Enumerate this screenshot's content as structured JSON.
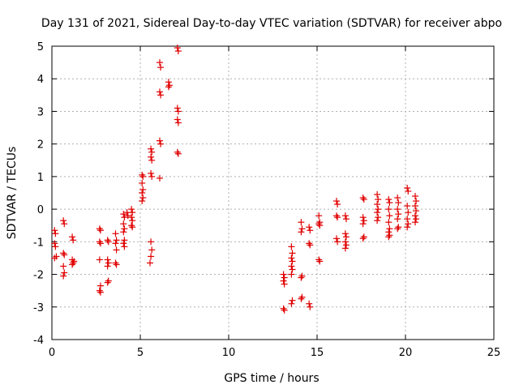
{
  "chart_data": {
    "type": "scatter",
    "title": "Day 131 of 2021, Sidereal Day-to-day VTEC variation (SDTVAR) for receiver abpo",
    "xlabel": "GPS time / hours",
    "ylabel": "SDTVAR / TECUs",
    "xlim": [
      0,
      25
    ],
    "ylim": [
      -4,
      5
    ],
    "xticks": [
      0,
      5,
      10,
      15,
      20,
      25
    ],
    "yticks": [
      -4,
      -3,
      -2,
      -1,
      0,
      1,
      2,
      3,
      4,
      5
    ],
    "grid": true,
    "marker": "+",
    "color": "#e00000",
    "series": [
      {
        "name": "SDTVAR",
        "points": [
          [
            0.15,
            -0.65
          ],
          [
            0.2,
            -0.75
          ],
          [
            0.15,
            -1.05
          ],
          [
            0.2,
            -1.15
          ],
          [
            0.25,
            -1.45
          ],
          [
            0.15,
            -1.5
          ],
          [
            0.65,
            -0.35
          ],
          [
            0.7,
            -0.45
          ],
          [
            0.65,
            -1.35
          ],
          [
            0.7,
            -1.4
          ],
          [
            0.65,
            -1.75
          ],
          [
            0.7,
            -1.95
          ],
          [
            0.65,
            -2.05
          ],
          [
            1.15,
            -0.85
          ],
          [
            1.2,
            -0.95
          ],
          [
            1.15,
            -1.55
          ],
          [
            1.2,
            -1.65
          ],
          [
            1.15,
            -1.7
          ],
          [
            1.25,
            -1.6
          ],
          [
            2.7,
            -0.6
          ],
          [
            2.75,
            -0.65
          ],
          [
            2.7,
            -1.0
          ],
          [
            2.75,
            -1.05
          ],
          [
            2.7,
            -1.55
          ],
          [
            2.75,
            -2.35
          ],
          [
            2.7,
            -2.5
          ],
          [
            2.75,
            -2.55
          ],
          [
            3.15,
            -0.95
          ],
          [
            3.2,
            -1.0
          ],
          [
            3.15,
            -1.55
          ],
          [
            3.2,
            -1.65
          ],
          [
            3.15,
            -1.75
          ],
          [
            3.2,
            -2.2
          ],
          [
            3.15,
            -2.25
          ],
          [
            3.6,
            -0.75
          ],
          [
            3.65,
            -0.95
          ],
          [
            3.6,
            -1.05
          ],
          [
            3.65,
            -1.25
          ],
          [
            3.6,
            -1.65
          ],
          [
            3.65,
            -1.7
          ],
          [
            4.05,
            -0.15
          ],
          [
            4.1,
            -0.25
          ],
          [
            4.05,
            -0.45
          ],
          [
            4.1,
            -0.6
          ],
          [
            4.05,
            -0.7
          ],
          [
            4.1,
            -0.95
          ],
          [
            4.05,
            -1.05
          ],
          [
            4.1,
            -1.15
          ],
          [
            4.25,
            -0.1
          ],
          [
            4.3,
            -0.2
          ],
          [
            4.5,
            0.0
          ],
          [
            4.55,
            -0.1
          ],
          [
            4.5,
            -0.25
          ],
          [
            4.55,
            -0.35
          ],
          [
            4.5,
            -0.5
          ],
          [
            4.55,
            -0.55
          ],
          [
            5.1,
            1.05
          ],
          [
            5.15,
            1.0
          ],
          [
            5.1,
            0.8
          ],
          [
            5.15,
            0.6
          ],
          [
            5.1,
            0.5
          ],
          [
            5.15,
            0.35
          ],
          [
            5.1,
            0.25
          ],
          [
            5.6,
            1.85
          ],
          [
            5.65,
            1.75
          ],
          [
            5.6,
            1.6
          ],
          [
            5.65,
            1.5
          ],
          [
            5.6,
            1.1
          ],
          [
            5.65,
            1.0
          ],
          [
            5.6,
            -1.0
          ],
          [
            5.65,
            -1.25
          ],
          [
            5.6,
            -1.45
          ],
          [
            5.55,
            -1.65
          ],
          [
            6.1,
            4.5
          ],
          [
            6.15,
            4.35
          ],
          [
            6.1,
            3.6
          ],
          [
            6.15,
            3.5
          ],
          [
            6.1,
            2.1
          ],
          [
            6.15,
            2.0
          ],
          [
            6.1,
            0.95
          ],
          [
            6.6,
            3.9
          ],
          [
            6.65,
            3.8
          ],
          [
            6.6,
            3.75
          ],
          [
            7.1,
            4.95
          ],
          [
            7.15,
            4.85
          ],
          [
            7.1,
            3.1
          ],
          [
            7.15,
            3.0
          ],
          [
            7.1,
            2.75
          ],
          [
            7.15,
            2.65
          ],
          [
            7.1,
            1.75
          ],
          [
            7.15,
            1.7
          ],
          [
            13.1,
            -2.0
          ],
          [
            13.15,
            -2.1
          ],
          [
            13.1,
            -2.2
          ],
          [
            13.15,
            -2.3
          ],
          [
            13.1,
            -3.05
          ],
          [
            13.15,
            -3.1
          ],
          [
            13.55,
            -1.15
          ],
          [
            13.6,
            -1.35
          ],
          [
            13.55,
            -1.5
          ],
          [
            13.6,
            -1.6
          ],
          [
            13.55,
            -1.75
          ],
          [
            13.6,
            -1.85
          ],
          [
            13.55,
            -2.0
          ],
          [
            13.6,
            -2.8
          ],
          [
            13.55,
            -2.9
          ],
          [
            14.1,
            -0.4
          ],
          [
            14.15,
            -0.6
          ],
          [
            14.1,
            -0.7
          ],
          [
            14.15,
            -2.05
          ],
          [
            14.1,
            -2.1
          ],
          [
            14.15,
            -2.7
          ],
          [
            14.1,
            -2.75
          ],
          [
            14.55,
            -0.55
          ],
          [
            14.6,
            -0.65
          ],
          [
            14.55,
            -1.05
          ],
          [
            14.6,
            -1.1
          ],
          [
            14.55,
            -2.9
          ],
          [
            14.6,
            -3.0
          ],
          [
            15.1,
            -0.2
          ],
          [
            15.15,
            -0.4
          ],
          [
            15.1,
            -0.45
          ],
          [
            15.15,
            -0.5
          ],
          [
            15.1,
            -1.55
          ],
          [
            15.15,
            -1.6
          ],
          [
            16.1,
            0.25
          ],
          [
            16.15,
            0.15
          ],
          [
            16.1,
            -0.2
          ],
          [
            16.15,
            -0.25
          ],
          [
            16.1,
            -0.9
          ],
          [
            16.15,
            -1.0
          ],
          [
            16.6,
            -0.2
          ],
          [
            16.65,
            -0.3
          ],
          [
            16.6,
            -0.75
          ],
          [
            16.65,
            -0.85
          ],
          [
            16.6,
            -1.0
          ],
          [
            16.65,
            -1.1
          ],
          [
            16.6,
            -1.2
          ],
          [
            17.6,
            0.35
          ],
          [
            17.65,
            0.3
          ],
          [
            17.6,
            -0.25
          ],
          [
            17.65,
            -0.35
          ],
          [
            17.6,
            -0.45
          ],
          [
            17.65,
            -0.85
          ],
          [
            17.6,
            -0.9
          ],
          [
            18.4,
            0.45
          ],
          [
            18.45,
            0.3
          ],
          [
            18.4,
            0.15
          ],
          [
            18.45,
            0.0
          ],
          [
            18.4,
            -0.1
          ],
          [
            18.45,
            -0.25
          ],
          [
            18.4,
            -0.35
          ],
          [
            19.05,
            0.3
          ],
          [
            19.1,
            0.2
          ],
          [
            19.05,
            0.0
          ],
          [
            19.1,
            -0.2
          ],
          [
            19.05,
            -0.4
          ],
          [
            19.1,
            -0.6
          ],
          [
            19.05,
            -0.7
          ],
          [
            19.1,
            -0.8
          ],
          [
            19.05,
            -0.85
          ],
          [
            19.55,
            0.35
          ],
          [
            19.6,
            0.2
          ],
          [
            19.55,
            0.0
          ],
          [
            19.6,
            -0.15
          ],
          [
            19.55,
            -0.3
          ],
          [
            19.6,
            -0.55
          ],
          [
            19.55,
            -0.6
          ],
          [
            20.1,
            0.65
          ],
          [
            20.15,
            0.55
          ],
          [
            20.1,
            0.1
          ],
          [
            20.15,
            -0.1
          ],
          [
            20.1,
            -0.3
          ],
          [
            20.15,
            -0.45
          ],
          [
            20.1,
            -0.55
          ],
          [
            20.55,
            0.4
          ],
          [
            20.6,
            0.25
          ],
          [
            20.55,
            0.1
          ],
          [
            20.6,
            -0.05
          ],
          [
            20.55,
            -0.2
          ],
          [
            20.6,
            -0.3
          ],
          [
            20.55,
            -0.4
          ]
        ]
      }
    ]
  }
}
